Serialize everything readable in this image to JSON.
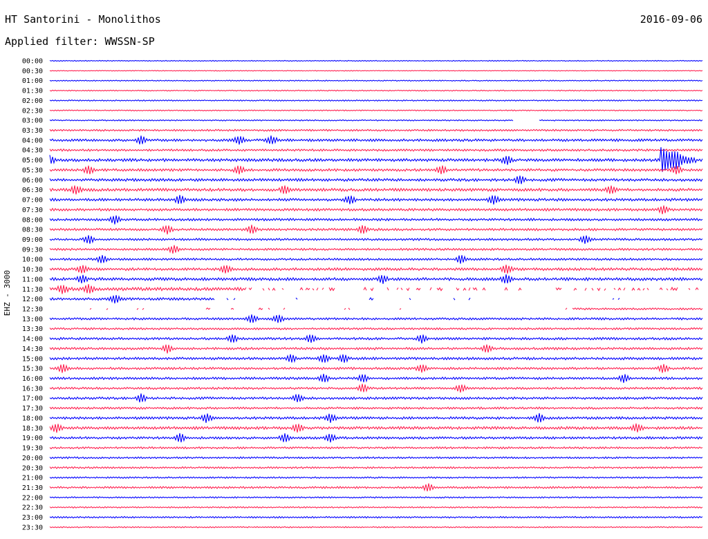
{
  "header": {
    "station": "HT Santorini - Monolithos",
    "date": "2016-09-06",
    "filter": "Applied filter: WWSSN-SP"
  },
  "chart_data": {
    "type": "line",
    "title": "HT Santorini - Monolithos",
    "ylabel": "EHZ - 3000",
    "row_labels": [
      "00:00",
      "00:30",
      "01:00",
      "01:30",
      "02:00",
      "02:30",
      "03:00",
      "03:30",
      "04:00",
      "04:30",
      "05:00",
      "05:30",
      "06:00",
      "06:30",
      "07:00",
      "07:30",
      "08:00",
      "08:30",
      "09:00",
      "09:30",
      "10:00",
      "10:30",
      "11:00",
      "11:30",
      "12:00",
      "12:30",
      "13:00",
      "13:30",
      "14:00",
      "14:30",
      "15:00",
      "15:30",
      "16:00",
      "16:30",
      "17:00",
      "17:30",
      "18:00",
      "18:30",
      "19:00",
      "19:30",
      "20:00",
      "20:30",
      "21:00",
      "21:30",
      "22:00",
      "22:30",
      "23:00",
      "23:30"
    ],
    "row_amplitude": [
      0.5,
      0.4,
      0.6,
      0.6,
      0.7,
      0.6,
      0.7,
      1.0,
      1.4,
      1.2,
      1.6,
      1.4,
      1.5,
      1.6,
      1.5,
      1.4,
      1.3,
      1.3,
      1.2,
      1.2,
      1.2,
      1.5,
      1.6,
      1.8,
      1.4,
      1.0,
      1.2,
      1.1,
      1.3,
      1.3,
      1.4,
      1.3,
      1.3,
      1.2,
      1.3,
      1.2,
      1.4,
      1.5,
      1.3,
      1.1,
      1.0,
      1.0,
      0.9,
      1.1,
      0.8,
      0.8,
      0.9,
      0.7
    ],
    "series": [
      {
        "color": "#0000ff"
      },
      {
        "color": "#ff1f4f"
      }
    ],
    "events": [
      {
        "row": 8,
        "x": [
          0.14,
          0.29,
          0.34
        ]
      },
      {
        "row": 10,
        "x": [
          0.0,
          0.7,
          0.96
        ]
      },
      {
        "row": 11,
        "x": [
          0.06,
          0.29,
          0.6,
          0.96
        ]
      },
      {
        "row": 12,
        "x": [
          0.72
        ]
      },
      {
        "row": 13,
        "x": [
          0.04,
          0.36,
          0.86
        ]
      },
      {
        "row": 14,
        "x": [
          0.2,
          0.46,
          0.68
        ]
      },
      {
        "row": 15,
        "x": [
          0.94
        ]
      },
      {
        "row": 16,
        "x": [
          0.1
        ]
      },
      {
        "row": 17,
        "x": [
          0.18,
          0.31,
          0.48
        ]
      },
      {
        "row": 18,
        "x": [
          0.06,
          0.82
        ]
      },
      {
        "row": 19,
        "x": [
          0.19
        ]
      },
      {
        "row": 20,
        "x": [
          0.08,
          0.63
        ]
      },
      {
        "row": 21,
        "x": [
          0.05,
          0.27,
          0.7
        ]
      },
      {
        "row": 22,
        "x": [
          0.05,
          0.51,
          0.7
        ]
      },
      {
        "row": 23,
        "x": [
          0.02,
          0.06
        ]
      },
      {
        "row": 24,
        "x": [
          0.1
        ]
      },
      {
        "row": 26,
        "x": [
          0.31,
          0.35
        ]
      },
      {
        "row": 28,
        "x": [
          0.28,
          0.4,
          0.57
        ]
      },
      {
        "row": 29,
        "x": [
          0.18,
          0.67
        ]
      },
      {
        "row": 30,
        "x": [
          0.37,
          0.42,
          0.45
        ]
      },
      {
        "row": 31,
        "x": [
          0.02,
          0.57,
          0.94
        ]
      },
      {
        "row": 32,
        "x": [
          0.42,
          0.48,
          0.88
        ]
      },
      {
        "row": 33,
        "x": [
          0.48,
          0.63
        ]
      },
      {
        "row": 34,
        "x": [
          0.14,
          0.38
        ]
      },
      {
        "row": 36,
        "x": [
          0.24,
          0.43,
          0.75
        ]
      },
      {
        "row": 37,
        "x": [
          0.01,
          0.38,
          0.9
        ]
      },
      {
        "row": 38,
        "x": [
          0.2,
          0.36,
          0.43
        ]
      },
      {
        "row": 43,
        "x": [
          0.58
        ]
      }
    ],
    "quake": {
      "row": 10,
      "x_start": 0.935,
      "x_end": 0.99,
      "peak_row": 9
    },
    "gaps": [
      {
        "row": 6,
        "x_start": 0.71,
        "x_end": 0.75
      }
    ],
    "dropout_rows": [
      23,
      24,
      25
    ],
    "dropout_end_row25": 0.8
  }
}
